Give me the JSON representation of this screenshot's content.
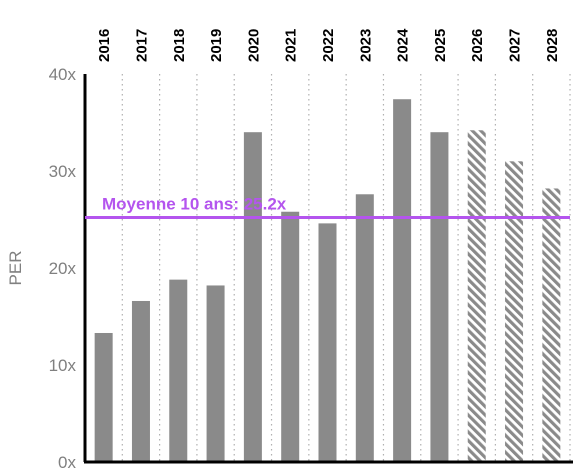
{
  "chart_data": {
    "type": "bar",
    "ylabel": "PER",
    "ylim": [
      0,
      40
    ],
    "yticks": [
      0,
      10,
      20,
      30,
      40
    ],
    "tick_suffix": "x",
    "grid": "vertical dotted between categories",
    "categories": [
      "2016",
      "2017",
      "2018",
      "2019",
      "2020",
      "2021",
      "2022",
      "2023",
      "2024",
      "2025",
      "2026",
      "2027",
      "2028"
    ],
    "values": [
      13.3,
      16.6,
      18.8,
      18.2,
      34.0,
      25.8,
      24.6,
      27.6,
      37.4,
      34.0,
      34.2,
      31.0,
      28.2
    ],
    "forecast": [
      false,
      false,
      false,
      false,
      false,
      false,
      false,
      false,
      false,
      false,
      true,
      true,
      true
    ],
    "bar_color": "#8a8a8a",
    "average": {
      "value": 25.2,
      "label": "Moyenne 10 ans: 25.2x",
      "color": "#b455ee"
    }
  }
}
